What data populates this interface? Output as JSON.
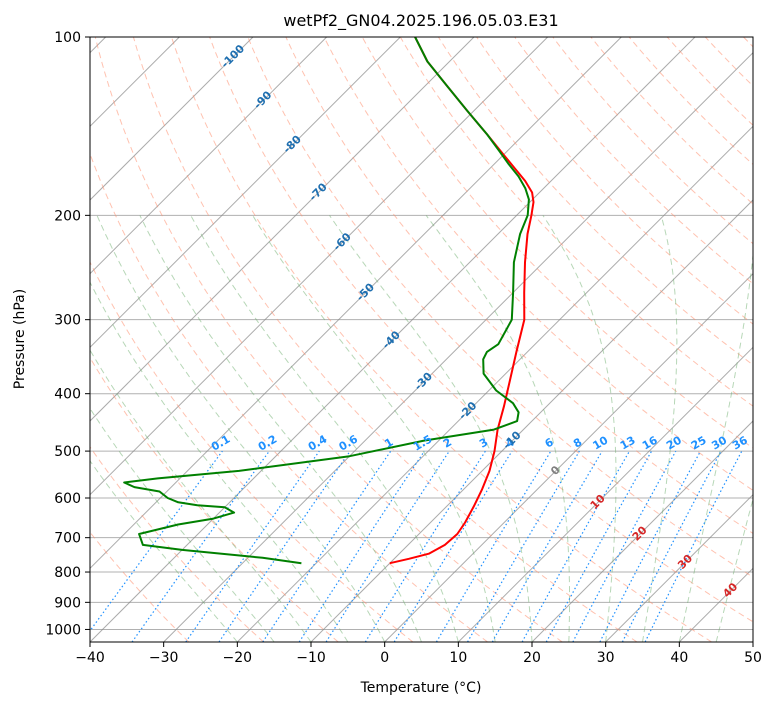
{
  "chart_data": {
    "type": "line",
    "title": "wetPf2_GN04.2025.196.05.03.E31",
    "xlabel": "Temperature (°C)",
    "ylabel": "Pressure (hPa)",
    "xlim": [
      -40,
      50
    ],
    "ylim": [
      1050,
      100
    ],
    "y_scale": "log",
    "x_ticks": [
      "−40",
      "−30",
      "−20",
      "−10",
      "0",
      "10",
      "20",
      "30",
      "40",
      "50"
    ],
    "y_ticks": [
      "100",
      "200",
      "300",
      "400",
      "500",
      "600",
      "700",
      "800",
      "900",
      "1000"
    ],
    "y_tick_values": [
      100,
      200,
      300,
      400,
      500,
      600,
      700,
      800,
      900,
      1000
    ],
    "grid": true,
    "skew_deg": 45,
    "series": [
      {
        "key": "temperature",
        "color": "#ff0000",
        "points": [
          [
            -10,
            773
          ],
          [
            -8,
            760
          ],
          [
            -6,
            745
          ],
          [
            -5,
            720
          ],
          [
            -4.8,
            690
          ],
          [
            -5.3,
            660
          ],
          [
            -6.3,
            620
          ],
          [
            -7.5,
            580
          ],
          [
            -9,
            540
          ],
          [
            -11,
            500
          ],
          [
            -13.5,
            460
          ],
          [
            -15.8,
            420
          ],
          [
            -18.5,
            380
          ],
          [
            -21.5,
            340
          ],
          [
            -24.8,
            300
          ],
          [
            -28.5,
            270
          ],
          [
            -32.5,
            240
          ],
          [
            -36,
            215
          ],
          [
            -38,
            200
          ],
          [
            -39.5,
            190
          ],
          [
            -41,
            183
          ],
          [
            -43.5,
            175
          ],
          [
            -46.5,
            167
          ],
          [
            -50,
            158
          ],
          [
            -55,
            146
          ],
          [
            -61,
            133
          ],
          [
            -67,
            121
          ],
          [
            -73,
            110
          ],
          [
            -78,
            100
          ]
        ]
      },
      {
        "key": "dewpoint",
        "color": "#008000",
        "points": [
          [
            -22,
            773
          ],
          [
            -28,
            757
          ],
          [
            -40,
            734
          ],
          [
            -46,
            720
          ],
          [
            -48,
            690
          ],
          [
            -44,
            665
          ],
          [
            -40,
            650
          ],
          [
            -38,
            635
          ],
          [
            -40,
            622
          ],
          [
            -44,
            617
          ],
          [
            -47,
            610
          ],
          [
            -49,
            600
          ],
          [
            -51,
            585
          ],
          [
            -55,
            575
          ],
          [
            -57,
            565
          ],
          [
            -53,
            556
          ],
          [
            -43,
            540
          ],
          [
            -30,
            510
          ],
          [
            -22,
            480
          ],
          [
            -14,
            460
          ],
          [
            -12,
            445
          ],
          [
            -13,
            430
          ],
          [
            -15,
            415
          ],
          [
            -19,
            395
          ],
          [
            -23,
            370
          ],
          [
            -25,
            350
          ],
          [
            -25.5,
            340
          ],
          [
            -25,
            330
          ],
          [
            -26.5,
            300
          ],
          [
            -30,
            270
          ],
          [
            -34,
            240
          ],
          [
            -37,
            215
          ],
          [
            -38.5,
            200
          ],
          [
            -40.5,
            188
          ],
          [
            -42.5,
            180
          ],
          [
            -45,
            172
          ],
          [
            -48,
            164
          ],
          [
            -51,
            156
          ],
          [
            -55,
            146
          ],
          [
            -61,
            133
          ],
          [
            -67,
            121
          ],
          [
            -73,
            110
          ],
          [
            -78,
            100
          ]
        ]
      }
    ],
    "isotherm_labels": [
      "-100",
      "-90",
      "-80",
      "-70",
      "-60",
      "-50",
      "-40",
      "-30",
      "-20",
      "-10"
    ],
    "isotherm_label_values": [
      -100,
      -90,
      -80,
      -70,
      -60,
      -50,
      -40,
      -30,
      -20,
      -10
    ],
    "zero_label": "0",
    "warm_labels": [
      "10",
      "20",
      "30",
      "40"
    ],
    "warm_label_values": [
      10,
      20,
      30,
      40
    ],
    "mixing_ratio_labels": [
      "0.1",
      "0.2",
      "0.4",
      "0.6",
      "1",
      "1.5",
      "2",
      "3",
      "4",
      "6",
      "8",
      "10",
      "13",
      "16",
      "20",
      "25",
      "30",
      "36"
    ],
    "mixing_ratio_values": [
      0.1,
      0.2,
      0.4,
      0.6,
      1,
      1.5,
      2,
      3,
      4,
      6,
      8,
      10,
      13,
      16,
      20,
      25,
      30,
      36
    ],
    "colors": {
      "isotherm_text": "#1f6fb0",
      "mixing_ratio": "#1e90ff",
      "warm_text": "#d62728",
      "zero_text": "#808080",
      "dry_adiabat": "#ff9070",
      "moist_adiabat": "#70b070",
      "grid": "#b0b0b0",
      "skew_line": "#888888"
    }
  }
}
